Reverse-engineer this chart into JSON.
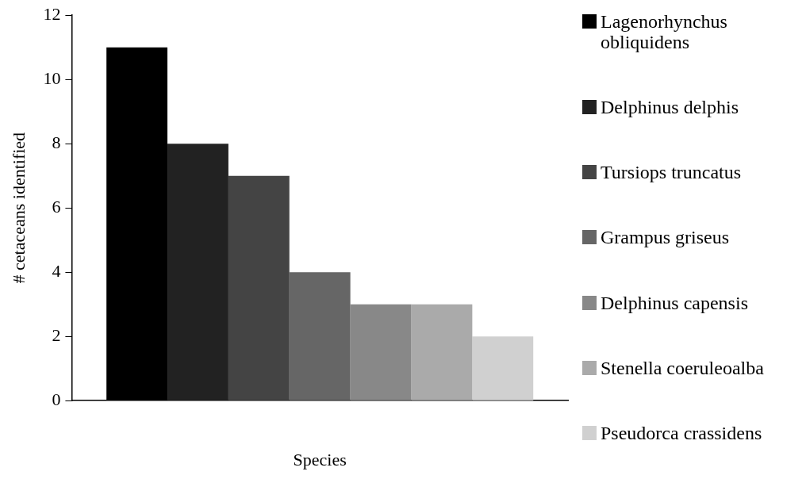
{
  "chart_data": {
    "type": "bar",
    "xlabel": "Species",
    "ylabel": "# cetaceans identified",
    "categories": [
      null
    ],
    "series": [
      {
        "name": "Lagenorhynchus obliquidens",
        "color": "#000000",
        "values": [
          11
        ]
      },
      {
        "name": "Delphinus delphis",
        "color": "#222222",
        "values": [
          8
        ]
      },
      {
        "name": "Tursiops truncatus",
        "color": "#444444",
        "values": [
          7
        ]
      },
      {
        "name": "Grampus griseus",
        "color": "#666666",
        "values": [
          4
        ]
      },
      {
        "name": "Delphinus capensis",
        "color": "#888888",
        "values": [
          3
        ]
      },
      {
        "name": "Stenella coeruleoalba",
        "color": "#aaaaaa",
        "values": [
          3
        ]
      },
      {
        "name": "Pseudorca crassidens",
        "color": "#d0d0d0",
        "values": [
          2
        ]
      }
    ],
    "ylim": [
      0,
      12
    ],
    "yticks": [
      0,
      2,
      4,
      6,
      8,
      10,
      12
    ],
    "grid": false,
    "legend": "right"
  }
}
